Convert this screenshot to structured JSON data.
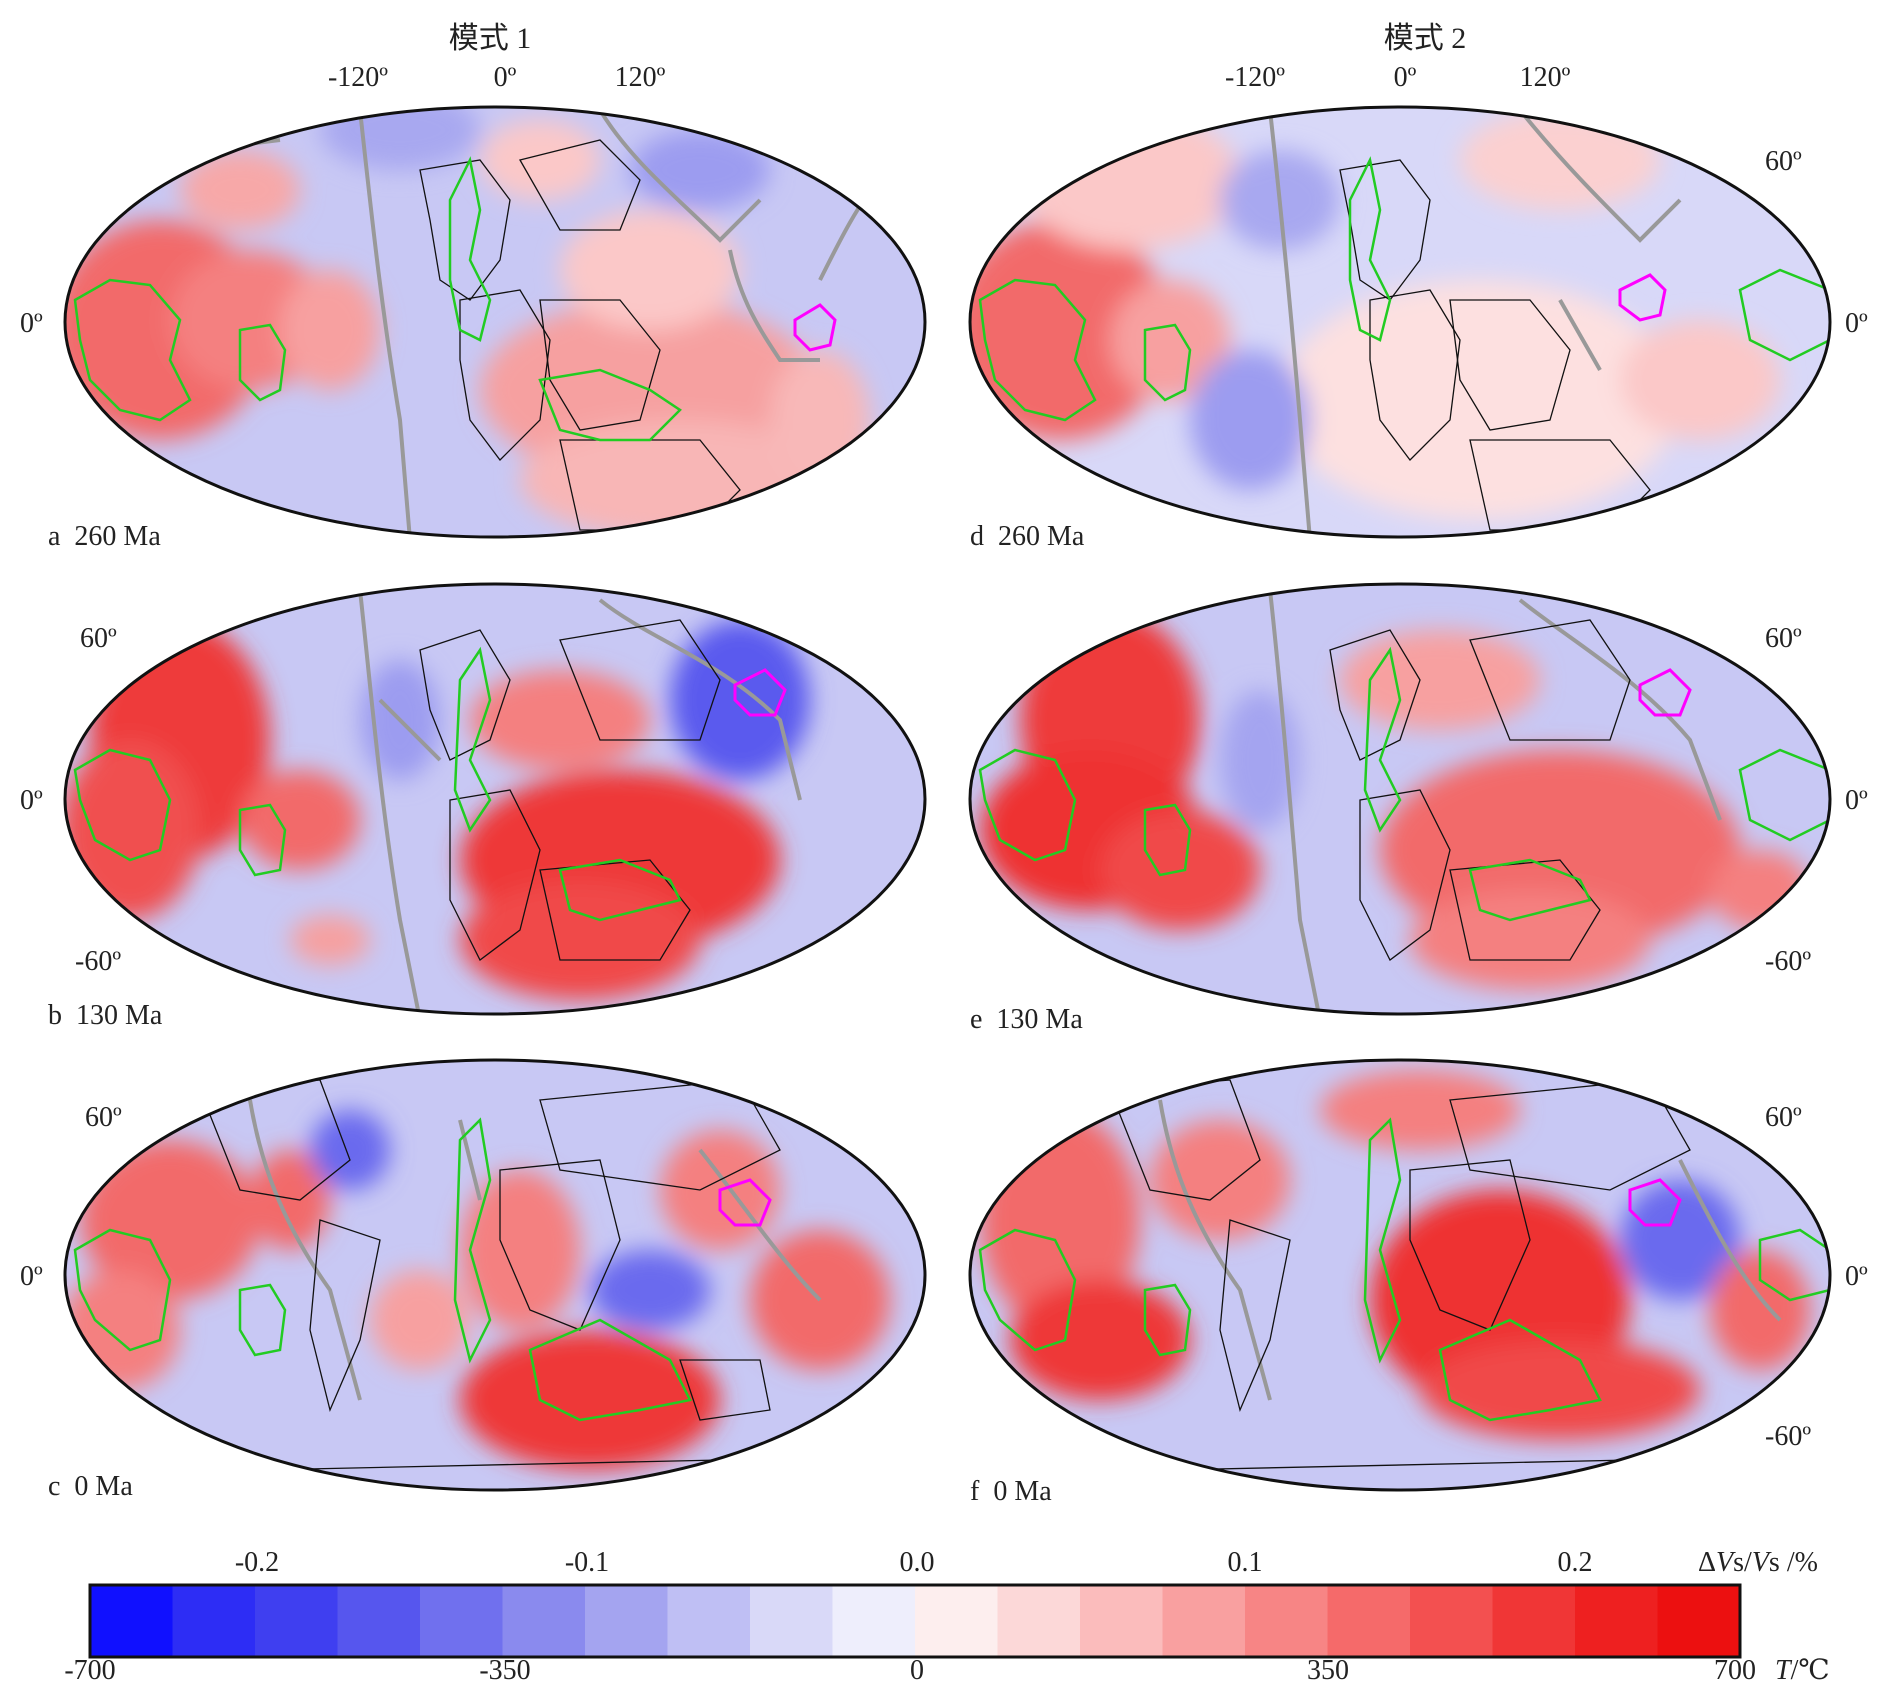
{
  "columns": [
    {
      "title": "模式 1",
      "lon_ticks": [
        "-120º",
        "0º",
        "120º"
      ]
    },
    {
      "title": "模式 2",
      "lon_ticks": [
        "-120º",
        "0º",
        "120º"
      ]
    }
  ],
  "lat_ticks": {
    "p60": "60º",
    "zero": "0º",
    "m60": "-60º"
  },
  "panels": [
    {
      "id": "a",
      "label": "a  260 Ma",
      "age_ma": 260,
      "lat_left": [
        "0º"
      ],
      "lat_right": []
    },
    {
      "id": "b",
      "label": "b  130 Ma",
      "age_ma": 130,
      "lat_left": [
        "60º",
        "0º",
        "-60º"
      ],
      "lat_right": []
    },
    {
      "id": "c",
      "label": "c  0 Ma",
      "age_ma": 0,
      "lat_left": [
        "60º",
        "0º"
      ],
      "lat_right": []
    },
    {
      "id": "d",
      "label": "d  260 Ma",
      "age_ma": 260,
      "lat_left": [],
      "lat_right": [
        "60º",
        "0º"
      ]
    },
    {
      "id": "e",
      "label": "e  130 Ma",
      "age_ma": 130,
      "lat_left": [],
      "lat_right": [
        "60º",
        "0º",
        "-60º"
      ]
    },
    {
      "id": "f",
      "label": "f  0 Ma",
      "age_ma": 0,
      "lat_left": [],
      "lat_right": [
        "60º",
        "0º",
        "-60º"
      ]
    }
  ],
  "colorbar": {
    "top_ticks": [
      "-0.2",
      "-0.1",
      "0.0",
      "0.1",
      "0.2"
    ],
    "top_unit_prefix": "Δ",
    "top_unit_vs1": "V",
    "top_unit_s1": "s/",
    "top_unit_vs2": "V",
    "top_unit_s2": "s /%",
    "bottom_ticks": [
      "-700",
      "-350",
      "0",
      "350",
      "700"
    ],
    "bottom_unit_t": "T",
    "bottom_unit_c": "/℃",
    "range_dvs": [
      -0.25,
      0.25
    ],
    "range_t": [
      -700,
      700
    ],
    "colors": [
      "#1010ff",
      "#2d2df5",
      "#3f3ff0",
      "#5656ee",
      "#7070ee",
      "#8a8aee",
      "#a4a4f0",
      "#bfbff4",
      "#d9d9f8",
      "#eeeefc",
      "#fdeeee",
      "#fcd8d8",
      "#fbbcbc",
      "#f9a0a0",
      "#f78585",
      "#f56a6a",
      "#f35050",
      "#f03636",
      "#ee2020",
      "#ec1010"
    ]
  },
  "overlay_colors": {
    "plate_boundary": "#999999",
    "llsvp_outline": "#22cc22",
    "region_outline": "#ff00ff",
    "coast": "#111111"
  }
}
